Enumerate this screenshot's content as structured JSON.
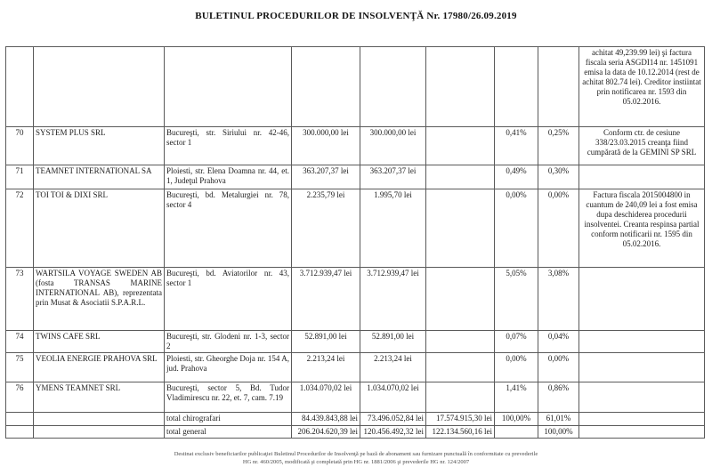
{
  "title": "BULETINUL PROCEDURILOR DE INSOLVENŢĂ Nr. 17980/26.09.2019",
  "table": {
    "rows": [
      {
        "nr": "",
        "creditor": "",
        "address": "",
        "amount1": "",
        "amount2": "",
        "amount3": "",
        "pct1": "",
        "pct2": "",
        "obs": "achitat 49,239.99 lei) şi factura fiscala seria ASGDI14 nr. 1451091 emisa la data de 10.12.2014 (rest de achitat 802.74 lei). Creditor instiintat prin notificarea nr. 1593 din 05.02.2016."
      },
      {
        "nr": "70",
        "creditor": "SYSTEM PLUS SRL",
        "address": "Bucureşti, str. Siriului nr. 42-46, sector 1",
        "amount1": "300.000,00 lei",
        "amount2": "300.000,00 lei",
        "amount3": "",
        "pct1": "0,41%",
        "pct2": "0,25%",
        "obs": "Conform ctr. de cesiune 338/23.03.2015 creanţa fiind cumpărată de la GEMINI SP SRL"
      },
      {
        "nr": "71",
        "creditor": "TEAMNET INTERNATIONAL SA",
        "address": "Ploiesti, str. Elena Doamna nr. 44, et. 1, Judeţul Prahova",
        "amount1": "363.207,37 lei",
        "amount2": "363.207,37 lei",
        "amount3": "",
        "pct1": "0,49%",
        "pct2": "0,30%",
        "obs": ""
      },
      {
        "nr": "72",
        "creditor": "TOI TOI & DIXI SRL",
        "address": "Bucureşti, bd. Metalurgiei nr. 78, sector 4",
        "amount1": "2.235,79 lei",
        "amount2": "1.995,70 lei",
        "amount3": "",
        "pct1": "0,00%",
        "pct2": "0,00%",
        "obs": "Factura fiscala 2015004800 in cuantum de 240,09 lei a fost emisa dupa deschiderea procedurii insolventei. Creanta respinsa partial conform notificarii nr. 1595 din 05.02.2016."
      },
      {
        "nr": "73",
        "creditor": "WARTSILA VOYAGE SWEDEN AB (fosta TRANSAS MARINE INTERNATIONAL AB), reprezentata prin Musat & Asociatii S.P.A.R.L.",
        "address": "Bucureşti, bd. Aviatorilor nr. 43, sector 1",
        "amount1": "3.712.939,47 lei",
        "amount2": "3.712.939,47 lei",
        "amount3": "",
        "pct1": "5,05%",
        "pct2": "3,08%",
        "obs": ""
      },
      {
        "nr": "74",
        "creditor": "TWINS CAFE SRL",
        "address": "Bucureşti, str. Glodeni nr. 1-3, sector 2",
        "amount1": "52.891,00 lei",
        "amount2": "52.891,00 lei",
        "amount3": "",
        "pct1": "0,07%",
        "pct2": "0,04%",
        "obs": ""
      },
      {
        "nr": "75",
        "creditor": "VEOLIA ENERGIE PRAHOVA SRL",
        "address": "Ploiesti, str. Gheorghe Doja nr. 154 A, jud. Prahova",
        "amount1": "2.213,24 lei",
        "amount2": "2.213,24 lei",
        "amount3": "",
        "pct1": "0,00%",
        "pct2": "0,00%",
        "obs": ""
      },
      {
        "nr": "76",
        "creditor": "YMENS TEAMNET SRL",
        "address": "Bucureşti, sector 5, Bd. Tudor Vladimirescu nr. 22, et. 7, cam. 7.19",
        "amount1": "1.034.070,02 lei",
        "amount2": "1.034.070,02 lei",
        "amount3": "",
        "pct1": "1,41%",
        "pct2": "0,86%",
        "obs": ""
      }
    ],
    "totals": [
      {
        "label": "total chirografari",
        "amount1": "84.439.843,88 lei",
        "amount2": "73.496.052,84 lei",
        "amount3": "17.574.915,30 lei",
        "pct1": "100,00%",
        "pct2": "61,01%",
        "obs": ""
      },
      {
        "label": "total general",
        "amount1": "206.204.620,39 lei",
        "amount2": "120.456.492,32 lei",
        "amount3": "122.134.560,16 lei",
        "pct1": "",
        "pct2": "100,00%",
        "obs": ""
      }
    ]
  },
  "footer": {
    "line1": "Destinat exclusiv beneficiarilor publicaţiei Buletinul Procedurilor de Insolvenţă pe bază de abonament sau furnizare punctuală în conformitate cu prevederile",
    "line2": "HG nr. 460/2005, modificată şi completată prin HG nr. 1881/2006 şi prevederile HG nr. 124/2007"
  }
}
